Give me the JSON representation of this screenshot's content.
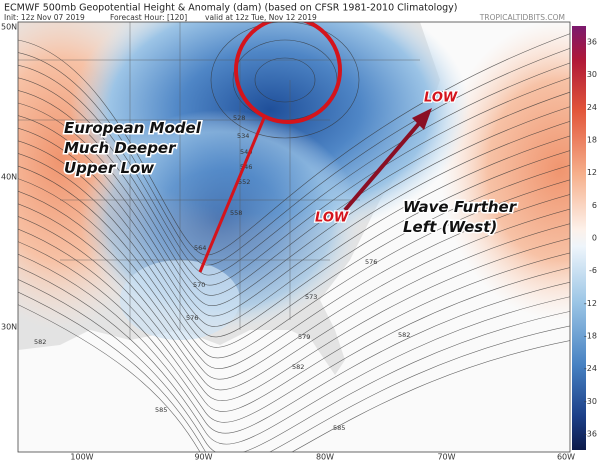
{
  "header": {
    "title": "ECMWF 500mb Geopotential Height & Anomaly (dam) (based on CFSR 1981-2010 Climatology)",
    "init": "Init: 12z Nov 07 2019",
    "forecast_hour": "Forecast Hour: [120]",
    "valid": "valid at 12z Tue, Nov 12 2019",
    "credit": "TROPICALTIDBITS.COM"
  },
  "map": {
    "latitude_labels": [
      "50N",
      "40N",
      "30N"
    ],
    "longitude_labels": [
      "100W",
      "90W",
      "80W",
      "70W",
      "60W"
    ],
    "contour_labels": [
      "528",
      "534",
      "540",
      "546",
      "552",
      "558",
      "564",
      "570",
      "573",
      "576",
      "576",
      "579",
      "582",
      "582",
      "582",
      "585",
      "585"
    ]
  },
  "annotations": {
    "upper_low": "European Model Much Deeper Upper Low",
    "low_south": "LOW",
    "low_north": "LOW",
    "wave": "Wave Further Left (West)"
  },
  "colorbar": {
    "labels": [
      36,
      30,
      24,
      18,
      12,
      6,
      0,
      -6,
      -12,
      -18,
      -24,
      -30,
      -36
    ]
  }
}
